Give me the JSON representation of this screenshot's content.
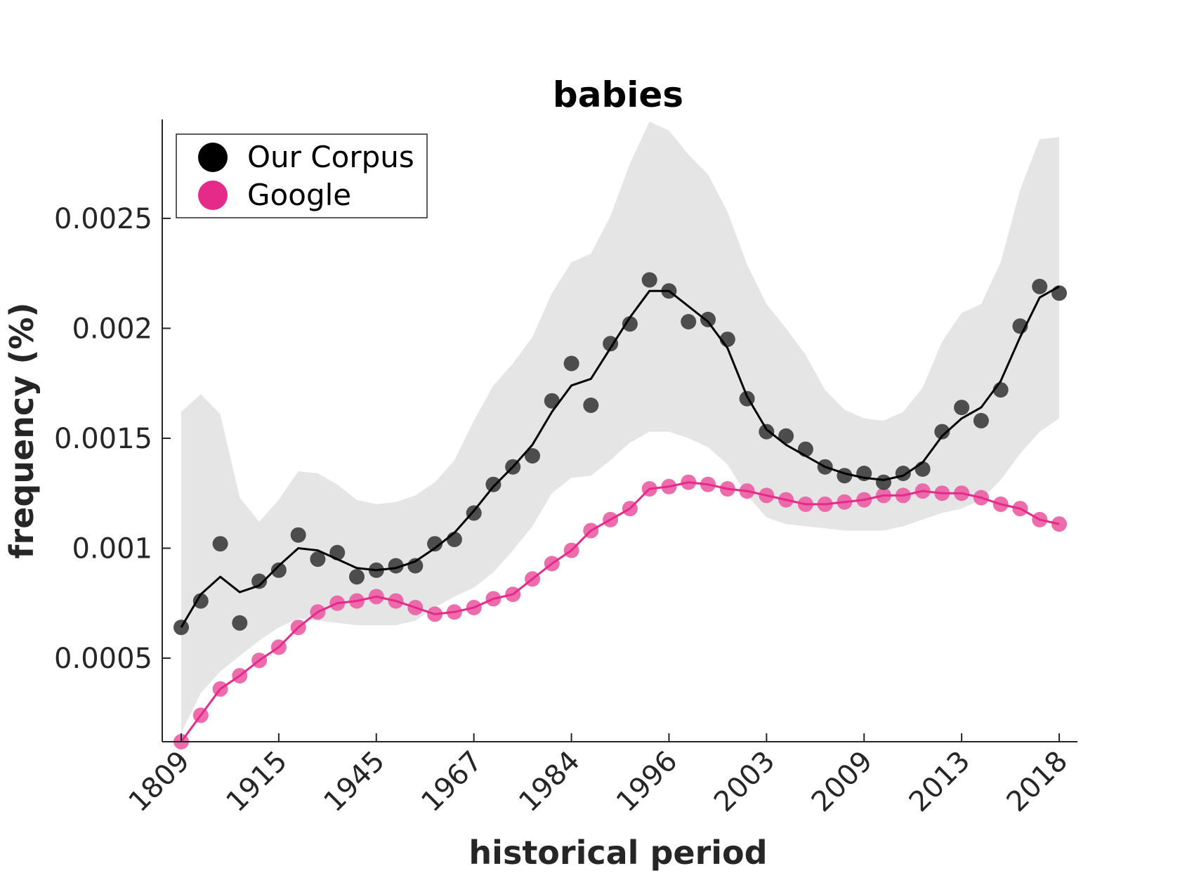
{
  "chart_data": {
    "type": "scatter",
    "title": "babies",
    "xlabel": "historical period",
    "ylabel": "frequency (%)",
    "x_tick_labels": [
      "1809",
      "1915",
      "1945",
      "1967",
      "1984",
      "1996",
      "2003",
      "2009",
      "2013",
      "2018"
    ],
    "y_ticks": [
      0.0005,
      0.001,
      0.0015,
      0.002,
      0.0025
    ],
    "y_tick_labels": [
      "0.0005",
      "0.001",
      "0.0015",
      "0.002",
      "0.0025"
    ],
    "ylim": [
      0.00012,
      0.00295
    ],
    "grid": false,
    "legend_position": "top-left",
    "band_color": "#e5e5e5",
    "series": [
      {
        "name": "Our Corpus",
        "color": "#000000",
        "marker_color": "#404040",
        "points": [
          0.00064,
          0.00076,
          0.00102,
          0.00066,
          0.00085,
          0.0009,
          0.00106,
          0.00095,
          0.00098,
          0.00087,
          0.0009,
          0.00092,
          0.00092,
          0.00102,
          0.00104,
          0.00116,
          0.00129,
          0.00137,
          0.00142,
          0.00167,
          0.00184,
          0.00165,
          0.00193,
          0.00202,
          0.00222,
          0.00217,
          0.00203,
          0.00204,
          0.00195,
          0.00168,
          0.00153,
          0.00151,
          0.00145,
          0.00137,
          0.00133,
          0.00134,
          0.0013,
          0.00134,
          0.00136,
          0.00153,
          0.00164,
          0.00158,
          0.00172,
          0.00201,
          0.00219,
          0.00216
        ],
        "trend": [
          0.00064,
          0.00079,
          0.00087,
          0.0008,
          0.00083,
          0.00092,
          0.001,
          0.00099,
          0.00095,
          0.00091,
          0.0009,
          0.00091,
          0.00094,
          0.001,
          0.00107,
          0.00117,
          0.00128,
          0.00137,
          0.00147,
          0.00162,
          0.00174,
          0.00177,
          0.00191,
          0.00205,
          0.00217,
          0.00217,
          0.0021,
          0.00203,
          0.00191,
          0.00169,
          0.00154,
          0.00147,
          0.00142,
          0.00137,
          0.00134,
          0.00132,
          0.00131,
          0.00133,
          0.00139,
          0.00151,
          0.00159,
          0.00164,
          0.00176,
          0.00196,
          0.00214,
          0.00219
        ],
        "band_upper": [
          0.00162,
          0.0017,
          0.00161,
          0.00123,
          0.00112,
          0.00122,
          0.00135,
          0.00134,
          0.00129,
          0.00122,
          0.0012,
          0.00121,
          0.00124,
          0.0013,
          0.0014,
          0.00158,
          0.00174,
          0.00184,
          0.00196,
          0.00216,
          0.0023,
          0.00234,
          0.00251,
          0.00275,
          0.00294,
          0.0029,
          0.00279,
          0.0027,
          0.00253,
          0.00229,
          0.00211,
          0.002,
          0.00188,
          0.00172,
          0.00163,
          0.00159,
          0.00158,
          0.00162,
          0.00173,
          0.00194,
          0.00207,
          0.00211,
          0.0023,
          0.00263,
          0.00286,
          0.00287
        ],
        "band_lower": [
          0.00016,
          0.00034,
          0.00044,
          0.00051,
          0.00058,
          0.00064,
          0.00068,
          0.00067,
          0.00066,
          0.00065,
          0.00065,
          0.00065,
          0.00067,
          0.00073,
          0.00078,
          0.00082,
          0.00089,
          0.00099,
          0.0011,
          0.00125,
          0.00132,
          0.00133,
          0.0014,
          0.00148,
          0.00153,
          0.00153,
          0.0015,
          0.00146,
          0.00138,
          0.00124,
          0.00114,
          0.00111,
          0.0011,
          0.00109,
          0.00108,
          0.00108,
          0.00108,
          0.0011,
          0.00113,
          0.00116,
          0.00118,
          0.00122,
          0.00131,
          0.00143,
          0.00153,
          0.00159
        ]
      },
      {
        "name": "Google",
        "color": "#e62a8a",
        "marker_color": "#ea5fa5",
        "points": [
          0.00012,
          0.00024,
          0.00036,
          0.00042,
          0.00049,
          0.00055,
          0.00064,
          0.00071,
          0.00075,
          0.00076,
          0.00078,
          0.00076,
          0.00073,
          0.0007,
          0.00071,
          0.00073,
          0.00077,
          0.00079,
          0.00086,
          0.00093,
          0.00099,
          0.00108,
          0.00113,
          0.00118,
          0.00127,
          0.00128,
          0.0013,
          0.00129,
          0.00127,
          0.00126,
          0.00124,
          0.00122,
          0.0012,
          0.0012,
          0.00121,
          0.00122,
          0.00124,
          0.00124,
          0.00126,
          0.00125,
          0.00125,
          0.00123,
          0.0012,
          0.00118,
          0.00113,
          0.00111
        ],
        "trend": [
          0.00012,
          0.00024,
          0.00036,
          0.00042,
          0.00049,
          0.00055,
          0.00064,
          0.00071,
          0.00075,
          0.00076,
          0.00078,
          0.00076,
          0.00073,
          0.0007,
          0.00071,
          0.00073,
          0.00077,
          0.00079,
          0.00086,
          0.00093,
          0.00099,
          0.00108,
          0.00113,
          0.00118,
          0.00127,
          0.00128,
          0.0013,
          0.00129,
          0.00127,
          0.00126,
          0.00124,
          0.00122,
          0.0012,
          0.0012,
          0.00121,
          0.00122,
          0.00124,
          0.00124,
          0.00126,
          0.00125,
          0.00125,
          0.00123,
          0.0012,
          0.00118,
          0.00113,
          0.00111
        ]
      }
    ]
  }
}
